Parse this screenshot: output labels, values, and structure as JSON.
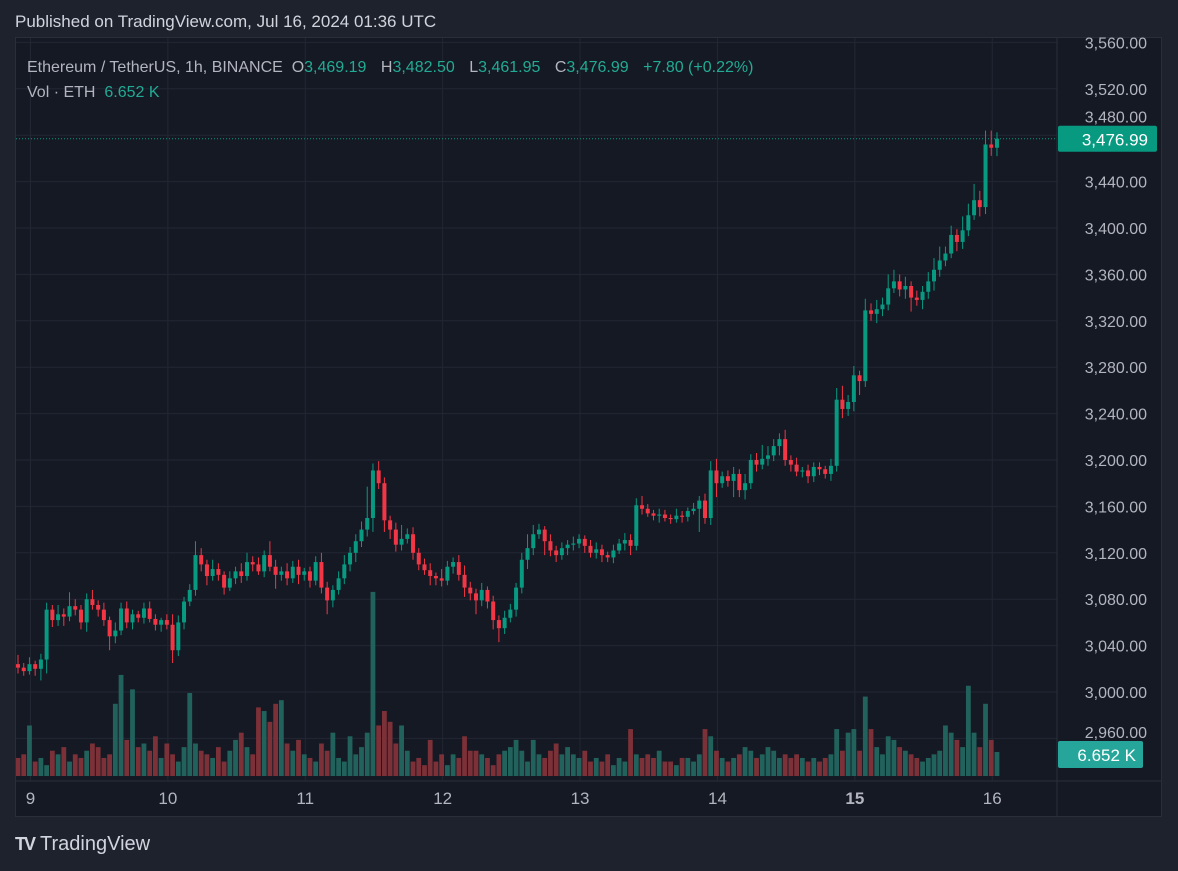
{
  "published": "Published on TradingView.com, Jul 16, 2024 01:36 UTC",
  "legend": {
    "symbol": "Ethereum / TetherUS, 1h, BINANCE",
    "o_label": "O",
    "o_value": "3,469.19",
    "h_label": "H",
    "h_value": "3,482.50",
    "l_label": "L",
    "l_value": "3,461.95",
    "c_label": "C",
    "c_value": "3,476.99",
    "change": "+7.80 (+0.22%)",
    "vol_label": "Vol · ETH",
    "vol_value": "6.652 K"
  },
  "footer": {
    "brand": "TradingView",
    "logo": "TV"
  },
  "colors": {
    "up": "#089981",
    "down": "#f23645",
    "vol_up": "#22625c",
    "vol_down": "#7c3037",
    "last_price_tag": "#089981",
    "vol_tag": "#26a69a"
  },
  "chart_data": {
    "type": "candlestick",
    "title": "Ethereum / TetherUS, 1h, BINANCE",
    "interval": "1h",
    "ylim": [
      2945,
      3565
    ],
    "price_ticks": [
      "3,560.00",
      "3,520.00",
      "3,480.00",
      "3,440.00",
      "3,400.00",
      "3,360.00",
      "3,320.00",
      "3,280.00",
      "3,240.00",
      "3,200.00",
      "3,160.00",
      "3,120.00",
      "3,080.00",
      "3,040.00",
      "3,000.00",
      "2,960.00"
    ],
    "price_tick_values": [
      3560,
      3520,
      3480,
      3440,
      3400,
      3360,
      3320,
      3280,
      3240,
      3200,
      3160,
      3120,
      3080,
      3040,
      3000,
      2960
    ],
    "x_labels": [
      {
        "label": "9",
        "index": 2,
        "bold": false
      },
      {
        "label": "10",
        "index": 26,
        "bold": false
      },
      {
        "label": "11",
        "index": 50,
        "bold": false
      },
      {
        "label": "12",
        "index": 74,
        "bold": false
      },
      {
        "label": "13",
        "index": 98,
        "bold": false
      },
      {
        "label": "14",
        "index": 122,
        "bold": false
      },
      {
        "label": "15",
        "index": 146,
        "bold": true
      },
      {
        "label": "16",
        "index": 170,
        "bold": false
      }
    ],
    "last_price": "3,476.99",
    "last_price_value": 3476.99,
    "last_volume": "6.652 K",
    "first_open": 3024,
    "close": [
      3021,
      3018,
      3024,
      3020,
      3028,
      3071,
      3062,
      3067,
      3065,
      3074,
      3071,
      3060,
      3080,
      3075,
      3071,
      3062,
      3048,
      3053,
      3072,
      3060,
      3067,
      3064,
      3072,
      3063,
      3058,
      3062,
      3058,
      3036,
      3060,
      3078,
      3088,
      3118,
      3110,
      3100,
      3106,
      3101,
      3090,
      3098,
      3104,
      3100,
      3112,
      3110,
      3104,
      3118,
      3108,
      3101,
      3104,
      3098,
      3108,
      3101,
      3104,
      3096,
      3112,
      3090,
      3079,
      3088,
      3098,
      3110,
      3120,
      3130,
      3140,
      3150,
      3191,
      3180,
      3148,
      3140,
      3127,
      3132,
      3136,
      3120,
      3110,
      3105,
      3100,
      3098,
      3096,
      3108,
      3112,
      3101,
      3090,
      3085,
      3079,
      3088,
      3078,
      3062,
      3055,
      3064,
      3071,
      3090,
      3114,
      3124,
      3136,
      3140,
      3130,
      3122,
      3118,
      3124,
      3127,
      3128,
      3132,
      3126,
      3120,
      3123,
      3118,
      3116,
      3122,
      3128,
      3131,
      3126,
      3161,
      3158,
      3154,
      3152,
      3153,
      3150,
      3149,
      3152,
      3151,
      3156,
      3158,
      3165,
      3150,
      3191,
      3180,
      3186,
      3182,
      3188,
      3174,
      3180,
      3200,
      3196,
      3201,
      3204,
      3212,
      3218,
      3200,
      3196,
      3190,
      3191,
      3186,
      3194,
      3192,
      3188,
      3195,
      3252,
      3244,
      3250,
      3273,
      3268,
      3329,
      3326,
      3330,
      3334,
      3348,
      3354,
      3347,
      3350,
      3340,
      3338,
      3345,
      3354,
      3364,
      3372,
      3378,
      3394,
      3388,
      3398,
      3411,
      3424,
      3418,
      3472,
      3469.19,
      3476.99
    ],
    "wick_up": [
      8,
      4,
      6,
      3,
      5,
      6,
      4,
      8,
      5,
      12,
      6,
      4,
      5,
      8,
      4,
      6,
      3,
      7,
      5,
      6,
      4,
      3,
      5,
      6,
      4,
      2,
      5,
      9,
      6,
      4,
      5,
      12,
      6,
      4,
      8,
      5,
      3,
      6,
      4,
      7,
      8,
      5,
      6,
      4,
      12,
      6,
      4,
      7,
      5,
      6,
      3,
      4,
      5,
      8,
      5,
      4,
      6,
      8,
      5,
      6,
      7,
      27,
      6,
      8,
      5,
      4,
      6,
      12,
      5,
      6,
      4,
      5,
      6,
      3,
      8,
      5,
      4,
      6,
      8,
      5,
      4,
      6,
      3,
      5,
      4,
      6,
      5,
      4,
      6,
      12,
      8,
      5,
      3,
      6,
      4,
      5,
      4,
      6,
      4,
      3,
      5,
      6,
      4,
      3,
      5,
      4,
      6,
      5,
      6,
      8,
      4,
      3,
      5,
      4,
      3,
      6,
      4,
      3,
      5,
      4,
      6,
      8,
      10,
      4,
      5,
      6,
      4,
      8,
      5,
      6,
      12,
      8,
      6,
      5,
      8,
      4,
      6,
      3,
      5,
      4,
      4,
      3,
      6,
      10,
      12,
      6,
      8,
      4,
      10,
      6,
      8,
      6,
      12,
      10,
      6,
      8,
      4,
      6,
      5,
      8,
      10,
      12,
      6,
      8,
      5,
      12,
      10,
      14,
      8,
      12,
      12,
      5.51
    ],
    "wick_down": [
      5,
      4,
      3,
      6,
      10,
      12,
      6,
      5,
      8,
      4,
      5,
      6,
      8,
      4,
      6,
      5,
      12,
      6,
      4,
      5,
      6,
      4,
      5,
      3,
      5,
      6,
      4,
      11,
      5,
      6,
      4,
      5,
      6,
      8,
      4,
      5,
      6,
      3,
      5,
      6,
      4,
      6,
      3,
      5,
      4,
      12,
      5,
      6,
      4,
      8,
      5,
      6,
      4,
      5,
      12,
      6,
      4,
      5,
      6,
      8,
      5,
      6,
      12,
      5,
      10,
      8,
      6,
      5,
      4,
      6,
      5,
      4,
      8,
      6,
      5,
      4,
      6,
      5,
      8,
      6,
      12,
      5,
      6,
      8,
      12,
      5,
      4,
      6,
      5,
      8,
      6,
      4,
      12,
      5,
      6,
      4,
      6,
      5,
      4,
      6,
      4,
      5,
      6,
      4,
      5,
      3,
      6,
      8,
      4,
      5,
      3,
      4,
      6,
      3,
      4,
      3,
      5,
      4,
      3,
      20,
      5,
      6,
      12,
      4,
      5,
      14,
      6,
      8,
      5,
      6,
      4,
      6,
      5,
      8,
      5,
      6,
      4,
      5,
      6,
      5,
      5,
      4,
      6,
      5,
      8,
      6,
      8,
      12,
      5,
      6,
      8,
      6,
      5,
      4,
      6,
      8,
      12,
      5,
      8,
      6,
      8,
      6,
      5,
      4,
      8,
      6,
      5,
      4,
      8,
      6,
      7,
      7.24
    ],
    "volume_k": [
      5,
      6,
      14,
      4,
      5,
      3,
      7,
      6,
      8,
      4,
      6,
      5,
      7,
      9,
      8,
      5,
      6,
      20,
      28,
      10,
      24,
      8,
      9,
      7,
      11,
      5,
      9,
      6,
      4,
      8,
      23,
      9,
      7,
      6,
      5,
      8,
      4,
      7,
      10,
      12,
      8,
      6,
      19,
      18,
      15,
      20,
      21,
      9,
      7,
      10,
      6,
      5,
      4,
      9,
      7,
      12,
      5,
      4,
      11,
      6,
      8,
      12,
      51,
      14,
      18,
      15,
      9,
      14,
      7,
      4,
      5,
      3,
      10,
      4,
      6,
      3,
      6,
      5,
      11,
      7,
      7,
      6,
      5,
      3,
      6,
      7,
      8,
      10,
      7,
      4,
      10,
      6,
      5,
      7,
      9,
      6,
      8,
      6,
      5,
      7,
      4,
      5,
      4,
      6,
      3,
      5,
      4,
      13,
      6,
      5,
      6,
      5,
      7,
      4,
      4,
      3,
      5,
      5,
      4,
      6,
      13,
      11,
      7,
      5,
      4,
      5,
      6,
      8,
      7,
      5,
      6,
      8,
      7,
      5,
      6,
      5,
      6,
      5,
      4,
      5,
      4,
      5,
      6,
      13,
      7,
      12,
      13,
      7,
      22,
      13,
      8,
      6,
      11,
      10,
      8,
      7,
      6,
      5,
      4,
      5,
      6,
      7,
      14,
      12,
      10,
      8,
      25,
      12,
      8,
      20,
      10,
      6.652
    ]
  }
}
